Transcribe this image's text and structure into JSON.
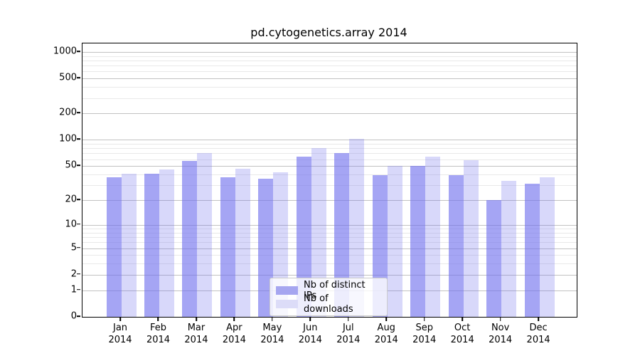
{
  "chart_data": {
    "type": "bar",
    "title": "pd.cytogenetics.array 2014",
    "categories": [
      "Jan",
      "Feb",
      "Mar",
      "Apr",
      "May",
      "Jun",
      "Jul",
      "Aug",
      "Sep",
      "Oct",
      "Nov",
      "Dec"
    ],
    "year_label": "2014",
    "series": [
      {
        "name": "Nb of distinct IPs",
        "values": [
          37,
          41,
          57,
          37,
          36,
          64,
          70,
          39,
          50,
          39,
          20,
          31
        ],
        "fill": "rgba(110,110,238,0.62)",
        "legend_color": "#a6a6f0"
      },
      {
        "name": "Nb of downloads",
        "values": [
          41,
          46,
          70,
          47,
          42,
          81,
          103,
          50,
          64,
          58,
          34,
          37
        ],
        "fill": "rgba(110,110,238,0.27)",
        "legend_color": "#dcdcf8"
      }
    ],
    "yticks": [
      0,
      1,
      2,
      5,
      10,
      20,
      50,
      100,
      200,
      500,
      1000
    ],
    "ylim": [
      0,
      1320
    ],
    "yscale": "log10(1+v)",
    "xlabel": "",
    "ylabel": "",
    "grid": "major+minor, horizontal, behind bars",
    "legend_position": "lower center",
    "colors": {
      "grid_major": "#c2c2c2",
      "grid_minor": "#e9e9e9",
      "axis": "#000000",
      "legend_border": "#cccccc"
    }
  }
}
